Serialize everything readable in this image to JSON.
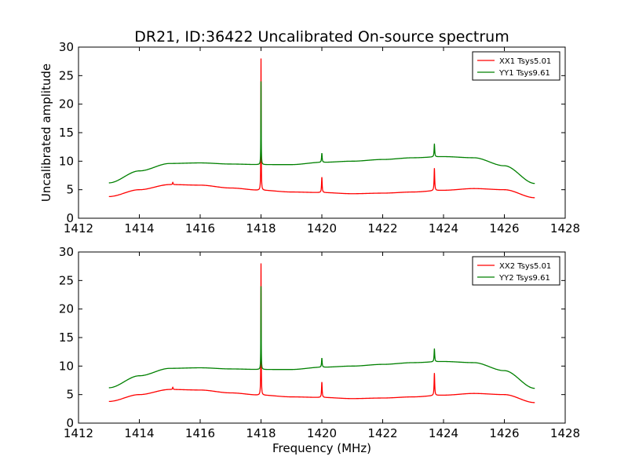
{
  "figure": {
    "title": "DR21, ID:36422 Uncalibrated On-source spectrum"
  },
  "chart_data": [
    {
      "type": "line",
      "title": "DR21, ID:36422 Uncalibrated On-source spectrum",
      "xlabel": "",
      "ylabel": "Uncalibrated amplitude",
      "xlim": [
        1412,
        1428
      ],
      "ylim": [
        0,
        30
      ],
      "xticks": [
        1412,
        1414,
        1416,
        1418,
        1420,
        1422,
        1424,
        1426,
        1428
      ],
      "yticks": [
        0,
        5,
        10,
        15,
        20,
        25,
        30
      ],
      "grid": false,
      "legend": "top-right",
      "series": [
        {
          "name": "XX1 Tsys5.01",
          "color": "#ff0000",
          "baseline": [
            [
              1413.0,
              3.8
            ],
            [
              1414.0,
              5.0
            ],
            [
              1415.0,
              5.9
            ],
            [
              1416.0,
              5.8
            ],
            [
              1417.0,
              5.3
            ],
            [
              1418.0,
              4.9
            ],
            [
              1419.0,
              4.6
            ],
            [
              1420.0,
              4.5
            ],
            [
              1421.0,
              4.3
            ],
            [
              1422.0,
              4.4
            ],
            [
              1423.0,
              4.6
            ],
            [
              1424.0,
              4.9
            ],
            [
              1425.0,
              5.2
            ],
            [
              1426.0,
              5.0
            ],
            [
              1427.0,
              3.6
            ]
          ],
          "peaks": [
            {
              "x": 1415.1,
              "y": 6.3
            },
            {
              "x": 1418.0,
              "y": 28.0
            },
            {
              "x": 1420.0,
              "y": 7.2
            },
            {
              "x": 1423.7,
              "y": 8.7
            }
          ]
        },
        {
          "name": "YY1 Tsys9.61",
          "color": "#008000",
          "baseline": [
            [
              1413.0,
              6.2
            ],
            [
              1414.0,
              8.3
            ],
            [
              1415.0,
              9.6
            ],
            [
              1416.0,
              9.7
            ],
            [
              1417.0,
              9.5
            ],
            [
              1418.0,
              9.4
            ],
            [
              1419.0,
              9.4
            ],
            [
              1420.0,
              9.8
            ],
            [
              1421.0,
              10.0
            ],
            [
              1422.0,
              10.3
            ],
            [
              1423.0,
              10.6
            ],
            [
              1424.0,
              10.8
            ],
            [
              1425.0,
              10.6
            ],
            [
              1426.0,
              9.2
            ],
            [
              1427.0,
              6.1
            ]
          ],
          "peaks": [
            {
              "x": 1418.0,
              "y": 24.0
            },
            {
              "x": 1420.0,
              "y": 11.4
            },
            {
              "x": 1423.7,
              "y": 13.0
            }
          ]
        }
      ]
    },
    {
      "type": "line",
      "title": "",
      "xlabel": "Frequency (MHz)",
      "ylabel": "",
      "xlim": [
        1412,
        1428
      ],
      "ylim": [
        0,
        30
      ],
      "xticks": [
        1412,
        1414,
        1416,
        1418,
        1420,
        1422,
        1424,
        1426,
        1428
      ],
      "yticks": [
        0,
        5,
        10,
        15,
        20,
        25,
        30
      ],
      "grid": false,
      "legend": "top-right",
      "series": [
        {
          "name": "XX2 Tsys5.01",
          "color": "#ff0000",
          "baseline": [
            [
              1413.0,
              3.8
            ],
            [
              1414.0,
              5.0
            ],
            [
              1415.0,
              5.9
            ],
            [
              1416.0,
              5.8
            ],
            [
              1417.0,
              5.3
            ],
            [
              1418.0,
              4.9
            ],
            [
              1419.0,
              4.6
            ],
            [
              1420.0,
              4.5
            ],
            [
              1421.0,
              4.3
            ],
            [
              1422.0,
              4.4
            ],
            [
              1423.0,
              4.6
            ],
            [
              1424.0,
              4.9
            ],
            [
              1425.0,
              5.2
            ],
            [
              1426.0,
              5.0
            ],
            [
              1427.0,
              3.6
            ]
          ],
          "peaks": [
            {
              "x": 1415.1,
              "y": 6.3
            },
            {
              "x": 1418.0,
              "y": 28.0
            },
            {
              "x": 1420.0,
              "y": 7.2
            },
            {
              "x": 1423.7,
              "y": 8.7
            }
          ]
        },
        {
          "name": "YY2 Tsys9.61",
          "color": "#008000",
          "baseline": [
            [
              1413.0,
              6.2
            ],
            [
              1414.0,
              8.3
            ],
            [
              1415.0,
              9.6
            ],
            [
              1416.0,
              9.7
            ],
            [
              1417.0,
              9.5
            ],
            [
              1418.0,
              9.4
            ],
            [
              1419.0,
              9.4
            ],
            [
              1420.0,
              9.8
            ],
            [
              1421.0,
              10.0
            ],
            [
              1422.0,
              10.3
            ],
            [
              1423.0,
              10.6
            ],
            [
              1424.0,
              10.8
            ],
            [
              1425.0,
              10.6
            ],
            [
              1426.0,
              9.2
            ],
            [
              1427.0,
              6.1
            ]
          ],
          "peaks": [
            {
              "x": 1418.0,
              "y": 24.0
            },
            {
              "x": 1420.0,
              "y": 11.4
            },
            {
              "x": 1423.7,
              "y": 13.0
            }
          ]
        }
      ]
    }
  ]
}
